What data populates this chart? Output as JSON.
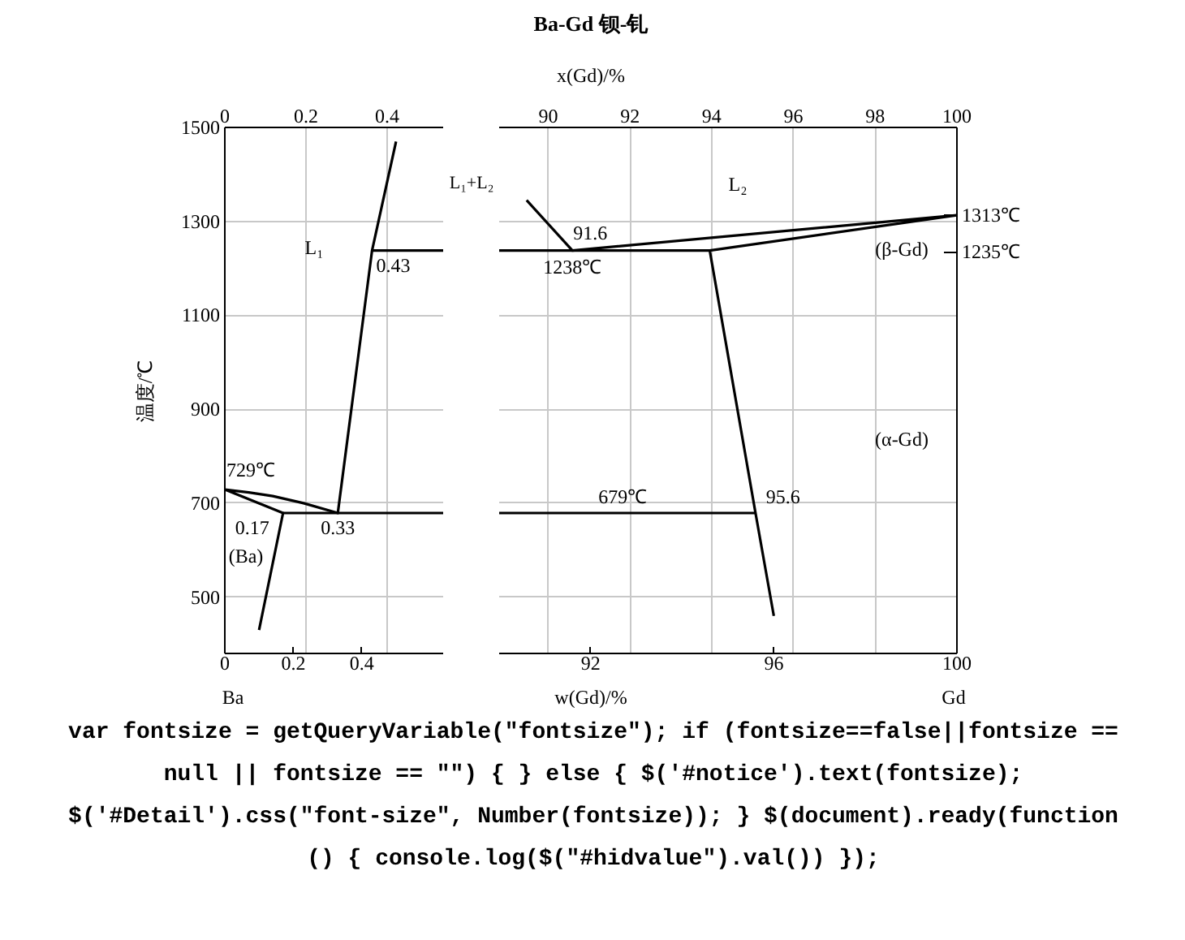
{
  "chart_data": [
    {
      "type": "line",
      "ylabel": "温度/℃",
      "xlim": [
        0,
        0.64
      ],
      "xticks": [
        0,
        0.2,
        0.4
      ],
      "x2lim": [
        0,
        0.54
      ],
      "x2ticks": [
        0,
        0.2,
        0.4
      ],
      "ylim": [
        380,
        1500
      ],
      "yticks": [
        500,
        700,
        900,
        1100,
        1300,
        1500
      ],
      "grid": true,
      "line_style": "solid",
      "series": [
        {
          "color": "#000000",
          "x": [
            0.1,
            0.17,
            0,
            0.07,
            0.14,
            0.23,
            0.33,
            0.43,
            0.5
          ],
          "values": [
            430,
            679,
            729,
            723,
            715,
            700,
            679,
            1238,
            1470
          ]
        },
        {
          "color": "#000000",
          "x": [
            0.17,
            0.64
          ],
          "values": [
            679,
            679
          ]
        },
        {
          "color": "#000000",
          "x": [
            0.43,
            0.64
          ],
          "values": [
            1238,
            1238
          ]
        }
      ],
      "annotations": [
        "L₁+L₂",
        "L₁",
        {
          "text": "0.43",
          "x": 0.43,
          "y": 1238
        },
        {
          "text": "729℃",
          "x": 0,
          "y": 729
        },
        {
          "text": "0.17",
          "x": 0.17,
          "y": 679
        },
        {
          "text": "0.33",
          "x": 0.33,
          "y": 679
        },
        "(Ba)",
        "Ba"
      ]
    },
    {
      "type": "line",
      "title": "Ba-Gd 钡-钆",
      "xlabel": "w(Gd)/%",
      "x2label": "x(Gd)/%",
      "xlim": [
        90,
        100
      ],
      "xticks": [
        92,
        96,
        100
      ],
      "x2lim": [
        88.8,
        100
      ],
      "x2ticks": [
        90,
        92,
        94,
        96,
        98,
        100
      ],
      "ylim": [
        380,
        1500
      ],
      "yticks": [
        500,
        700,
        900,
        1100,
        1300,
        1500
      ],
      "y2lim": [
        380,
        1500
      ],
      "y2ticks": [
        {
          "value": 1313,
          "label": "1313℃"
        },
        {
          "value": 1235,
          "label": "1235℃"
        }
      ],
      "tick_labels": "x",
      "grid": true,
      "line_style": "solid",
      "series": [
        {
          "color": "#000000",
          "x": [
            90.6,
            91.6,
            100,
            94.6,
            95.6,
            96.0
          ],
          "values": [
            1345,
            1238,
            1313,
            1238,
            679,
            460
          ]
        },
        {
          "color": "#000000",
          "x": [
            90,
            94.6
          ],
          "values": [
            1238,
            1238
          ]
        },
        {
          "color": "#000000",
          "x": [
            90,
            95.6
          ],
          "values": [
            679,
            679
          ]
        }
      ],
      "annotations": [
        "L₂",
        {
          "text": "91.6",
          "x": 91.6,
          "y": 1238
        },
        {
          "text": "1238℃",
          "x": 91.6,
          "y": 1238
        },
        "(β-Gd)",
        "(α-Gd)",
        {
          "text": "679℃",
          "x": 92.7,
          "y": 679
        },
        {
          "text": "95.6",
          "x": 95.6,
          "y": 679
        },
        "Gd"
      ]
    },
    {
      "type": "other",
      "annotations": [
        "var fontsize = getQueryVariable(\"fontsize\"); if (fontsize==false||fontsize == null || fontsize == \"\") { } else { $('#notice').text(fontsize); $('#Detail').css(\"font-size\", Number(fontsize)); } $(document).ready(function () { console.log($(\"#hidvalue\").val()) });"
      ]
    }
  ]
}
